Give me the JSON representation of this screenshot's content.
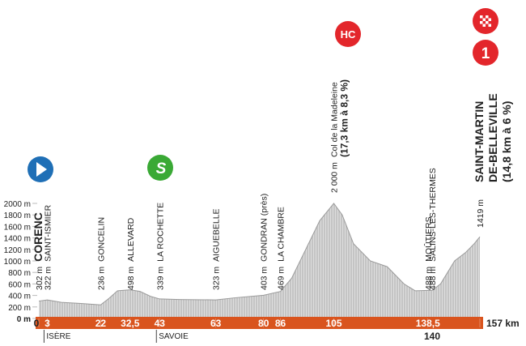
{
  "chart_data": {
    "type": "area",
    "color": "#c4c4c4",
    "bar_color": "#d9541e",
    "x": [
      0,
      3,
      8,
      15,
      22,
      25,
      28,
      32.5,
      36,
      40,
      43,
      50,
      63,
      70,
      80,
      86,
      90,
      95,
      100,
      105,
      108,
      112,
      118,
      124,
      130,
      134,
      138.5,
      140,
      143,
      148,
      152,
      155,
      157
    ],
    "values": [
      302,
      322,
      280,
      260,
      236,
      350,
      480,
      498,
      470,
      380,
      339,
      330,
      323,
      360,
      403,
      469,
      700,
      1200,
      1700,
      2000,
      1800,
      1300,
      1000,
      900,
      600,
      480,
      488,
      488,
      600,
      1000,
      1150,
      1300,
      1419
    ],
    "xlim": [
      0,
      157
    ],
    "ylim": [
      0,
      2000
    ],
    "yticks": [
      {
        "value": 0,
        "label": "0 m"
      },
      {
        "value": 200,
        "label": "200 m"
      },
      {
        "value": 400,
        "label": "400 m"
      },
      {
        "value": 600,
        "label": "600 m"
      },
      {
        "value": 800,
        "label": "800 m"
      },
      {
        "value": 1000,
        "label": "1000 m"
      },
      {
        "value": 1200,
        "label": "1200 m"
      },
      {
        "value": 1400,
        "label": "1400 m"
      },
      {
        "value": 1600,
        "label": "1600 m"
      },
      {
        "value": 1800,
        "label": "1800 m"
      },
      {
        "value": 2000,
        "label": "2000 m"
      }
    ],
    "xticks": [
      0,
      3,
      22,
      {
        "value": 32.5,
        "label": "32,5"
      },
      43,
      63,
      80,
      86,
      105,
      {
        "value": 138.5,
        "label": "138,5"
      },
      {
        "value": 157,
        "label": "157 km"
      }
    ],
    "xticks_below": [
      140
    ],
    "regions": [
      {
        "km": 3,
        "label": "ISÈRE"
      },
      {
        "km": 43,
        "label": "SAVOIE"
      }
    ],
    "annotations": [
      {
        "km": 0,
        "altitude": "302 m",
        "name": [
          "CORENC"
        ],
        "emphasis": true,
        "badge": "start"
      },
      {
        "km": 3,
        "altitude": "322 m",
        "name": [
          "SAINT-ISMIER"
        ]
      },
      {
        "km": 22,
        "altitude": "236 m",
        "name": [
          "GONCELIN"
        ]
      },
      {
        "km": 32.5,
        "altitude": "498 m",
        "name": [
          "ALLEVARD"
        ]
      },
      {
        "km": 43,
        "altitude": "339 m",
        "name": [
          "LA ROCHETTE"
        ],
        "badge": "sprint",
        "badge_text": "S"
      },
      {
        "km": 63,
        "altitude": "323 m",
        "name": [
          "AIGUEBELLE"
        ]
      },
      {
        "km": 80,
        "altitude": "403 m",
        "name": [
          "GONDRAN (près)"
        ]
      },
      {
        "km": 86,
        "altitude": "469 m",
        "name": [
          "LA CHAMBRE"
        ]
      },
      {
        "km": 105,
        "altitude": "2 000 m",
        "name": [
          "Col de la Madeleine"
        ],
        "note": "(17,3 km à 8,3 %)",
        "badge": "climb",
        "badge_text": "HC"
      },
      {
        "km": 138.5,
        "altitude": "488 m",
        "name": [
          "MOÛTIERS"
        ]
      },
      {
        "km": 140,
        "altitude": "488 m",
        "name": [
          "SALINS-LES-THERMES"
        ]
      },
      {
        "km": 157,
        "altitude": "1419 m",
        "name": [
          "SAINT-MARTIN",
          "DE-BELLEVILLE"
        ],
        "note": "(14,8 km à 6 %)",
        "emphasis": true,
        "badge": "finish",
        "badge_text": "1"
      }
    ]
  }
}
